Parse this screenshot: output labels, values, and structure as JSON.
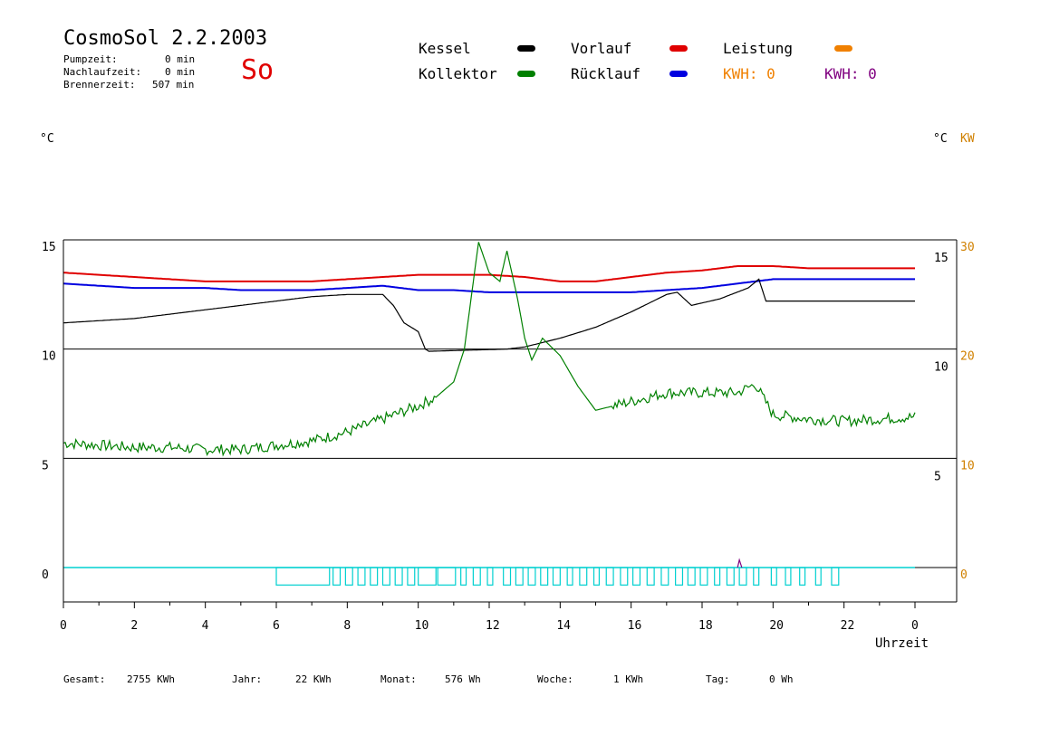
{
  "header": {
    "title": "CosmoSol 2.2.2003",
    "day": "So",
    "pumpzeit_label": "Pumpzeit:",
    "pumpzeit_value": "0 min",
    "nachlauf_label": "Nachlaufzeit:",
    "nachlauf_value": "0 min",
    "brenner_label": "Brennerzeit:",
    "brenner_value": "507 min"
  },
  "legend": {
    "kessel": "Kessel",
    "kollektor": "Kollektor",
    "vorlauf": "Vorlauf",
    "ruecklauf": "Rücklauf",
    "leistung": "Leistung",
    "kwh1": "KWH: 0",
    "kwh2": "KWH: 0",
    "colors": {
      "kessel": "#000000",
      "kollektor": "#008000",
      "vorlauf": "#e00000",
      "ruecklauf": "#0000e0",
      "leistung": "#f08000",
      "kwh2": "#800080",
      "pump": "#00d0d0"
    }
  },
  "units": {
    "left": "°C",
    "right_c": "°C",
    "right_kw": "KW"
  },
  "footer": {
    "gesamt_label": "Gesamt:",
    "gesamt_value": "2755 KWh",
    "jahr_label": "Jahr:",
    "jahr_value": "22 KWh",
    "monat_label": "Monat:",
    "monat_value": "576 Wh",
    "woche_label": "Woche:",
    "woche_value": "1 KWh",
    "tag_label": "Tag:",
    "tag_value": "0 Wh"
  },
  "chart_data": {
    "type": "line",
    "xlabel": "Uhrzeit",
    "x_ticks": [
      "0",
      "2",
      "4",
      "6",
      "8",
      "10",
      "12",
      "14",
      "16",
      "18",
      "20",
      "22",
      "0"
    ],
    "x_range": [
      0,
      24
    ],
    "y_left_ticks": [
      "15",
      "10",
      "5",
      "0"
    ],
    "y_right_c_ticks": [
      "15",
      "10",
      "5"
    ],
    "y_right_kw_ticks": [
      "30",
      "20",
      "10",
      "0"
    ],
    "ylim": [
      -1.5,
      15.3
    ],
    "grid": "horizontal at 0, 5, 10, 15",
    "series": [
      {
        "name": "Vorlauf",
        "color": "#e00000",
        "x": [
          0,
          1,
          2,
          3,
          4,
          5,
          6,
          7,
          8,
          9,
          10,
          11,
          12,
          13,
          14,
          15,
          16,
          17,
          18,
          19,
          20,
          21,
          22,
          23,
          24
        ],
        "y": [
          13.5,
          13.4,
          13.3,
          13.2,
          13.1,
          13.1,
          13.1,
          13.1,
          13.2,
          13.3,
          13.4,
          13.4,
          13.4,
          13.3,
          13.1,
          13.1,
          13.3,
          13.5,
          13.6,
          13.8,
          13.8,
          13.7,
          13.7,
          13.7,
          13.7
        ]
      },
      {
        "name": "Rücklauf",
        "color": "#0000e0",
        "x": [
          0,
          1,
          2,
          3,
          4,
          5,
          6,
          7,
          8,
          9,
          10,
          11,
          12,
          13,
          14,
          15,
          16,
          17,
          18,
          19,
          20,
          21,
          22,
          23,
          24
        ],
        "y": [
          13.0,
          12.9,
          12.8,
          12.8,
          12.8,
          12.7,
          12.7,
          12.7,
          12.8,
          12.9,
          12.7,
          12.7,
          12.6,
          12.6,
          12.6,
          12.6,
          12.6,
          12.7,
          12.8,
          13.0,
          13.2,
          13.2,
          13.2,
          13.2,
          13.2
        ]
      },
      {
        "name": "Kessel",
        "color": "#000000",
        "x": [
          0,
          1,
          2,
          3,
          4,
          5,
          6,
          7,
          8,
          9,
          9.3,
          9.6,
          10,
          10.2,
          10.3,
          12.5,
          13,
          14,
          15,
          16,
          17,
          17.3,
          17.7,
          18.5,
          19.3,
          19.6,
          19.8,
          20.5,
          22,
          24
        ],
        "y": [
          11.2,
          11.3,
          11.4,
          11.6,
          11.8,
          12.0,
          12.2,
          12.4,
          12.5,
          12.5,
          12.0,
          11.2,
          10.8,
          10.0,
          9.9,
          10.0,
          10.1,
          10.5,
          11.0,
          11.7,
          12.5,
          12.6,
          12.0,
          12.3,
          12.8,
          13.2,
          12.2,
          12.2,
          12.2,
          12.2
        ]
      },
      {
        "name": "Kollektor",
        "color": "#008000",
        "x": [
          0,
          1,
          2,
          3,
          4,
          5,
          6,
          7,
          8,
          9,
          9.5,
          10,
          10.5,
          11,
          11.3,
          11.7,
          12,
          12.3,
          12.5,
          12.8,
          13,
          13.2,
          13.5,
          14,
          14.5,
          15,
          16,
          17,
          18,
          19,
          19.5,
          20,
          21,
          22,
          23,
          24
        ],
        "y": [
          5.7,
          5.6,
          5.5,
          5.5,
          5.4,
          5.4,
          5.6,
          5.8,
          6.2,
          6.8,
          7.1,
          7.4,
          7.8,
          8.5,
          10.0,
          14.9,
          13.5,
          13.1,
          14.5,
          12.3,
          10.5,
          9.5,
          10.5,
          9.7,
          8.3,
          7.2,
          7.6,
          8.0,
          8.0,
          8.0,
          8.4,
          7.0,
          6.8,
          6.7,
          6.8,
          6.9
        ]
      }
    ],
    "pump_bars": {
      "name": "Pumpe",
      "color": "#00d0d0",
      "height": -0.8,
      "intervals": [
        [
          6.0,
          7.5
        ],
        [
          7.6,
          7.8
        ],
        [
          7.95,
          8.15
        ],
        [
          8.3,
          8.5
        ],
        [
          8.65,
          8.85
        ],
        [
          9.0,
          9.2
        ],
        [
          9.35,
          9.55
        ],
        [
          9.7,
          9.9
        ],
        [
          10.0,
          10.5
        ],
        [
          10.55,
          11.05
        ],
        [
          11.2,
          11.35
        ],
        [
          11.55,
          11.75
        ],
        [
          11.95,
          12.1
        ],
        [
          12.4,
          12.6
        ],
        [
          12.75,
          12.95
        ],
        [
          13.1,
          13.3
        ],
        [
          13.45,
          13.65
        ],
        [
          13.8,
          14.0
        ],
        [
          14.2,
          14.35
        ],
        [
          14.55,
          14.75
        ],
        [
          14.95,
          15.1
        ],
        [
          15.3,
          15.5
        ],
        [
          15.7,
          15.9
        ],
        [
          16.05,
          16.25
        ],
        [
          16.45,
          16.65
        ],
        [
          16.85,
          17.05
        ],
        [
          17.25,
          17.45
        ],
        [
          17.6,
          17.8
        ],
        [
          17.95,
          18.15
        ],
        [
          18.35,
          18.5
        ],
        [
          18.7,
          18.9
        ],
        [
          19.05,
          19.25
        ],
        [
          19.45,
          19.6
        ],
        [
          19.95,
          20.1
        ],
        [
          20.35,
          20.5
        ],
        [
          20.75,
          20.9
        ],
        [
          21.2,
          21.35
        ],
        [
          21.65,
          21.85
        ]
      ]
    }
  }
}
